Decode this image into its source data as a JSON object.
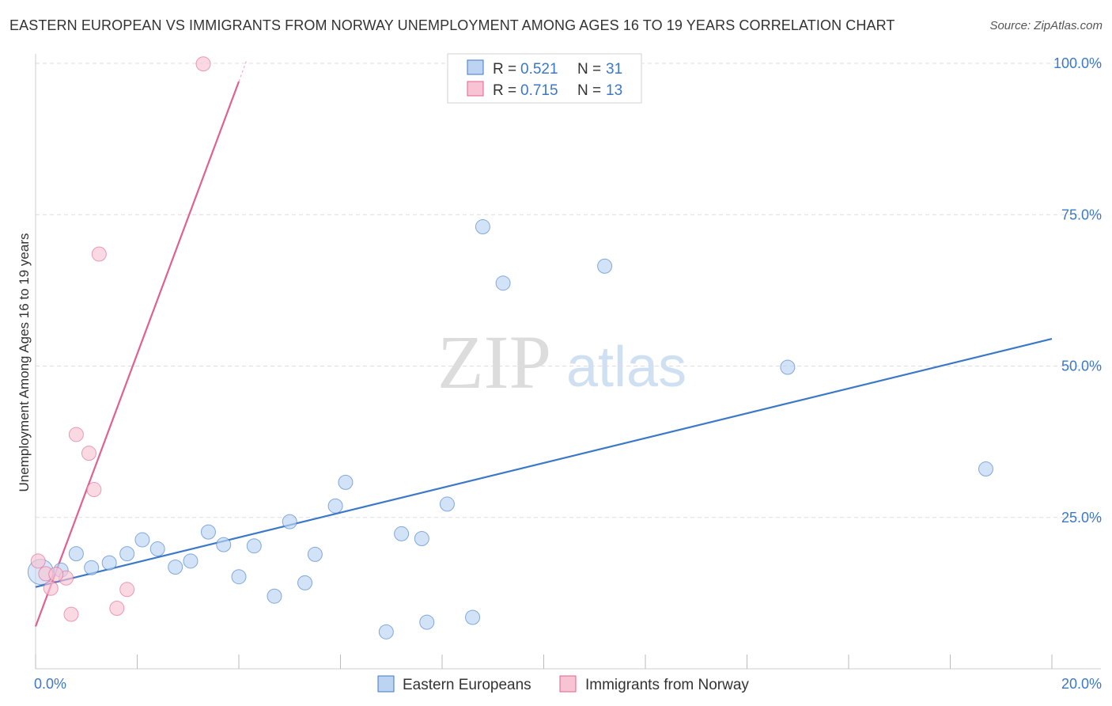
{
  "title": "EASTERN EUROPEAN VS IMMIGRANTS FROM NORWAY UNEMPLOYMENT AMONG AGES 16 TO 19 YEARS CORRELATION CHART",
  "source": "Source: ZipAtlas.com",
  "watermark": {
    "zip": "ZIP",
    "atlas": "atlas"
  },
  "colors": {
    "blue": "#3c78c8",
    "blue_fill": "#bcd4f2",
    "pink": "#e06090",
    "pink_fill": "#f8c4d4"
  },
  "legend": {
    "r_label": "R =",
    "n_label": "N =",
    "series": [
      {
        "r": "0.521",
        "n": "31"
      },
      {
        "r": "0.715",
        "n": "13"
      }
    ]
  },
  "chart_data": {
    "type": "scatter",
    "title": "EASTERN EUROPEAN VS IMMIGRANTS FROM NORWAY UNEMPLOYMENT AMONG AGES 16 TO 19 YEARS CORRELATION CHART",
    "xlabel": "",
    "ylabel": "Unemployment Among Ages 16 to 19 years",
    "xlim": [
      0,
      20
    ],
    "ylim": [
      0,
      100
    ],
    "x_tick_labels": [
      "0.0%",
      "20.0%"
    ],
    "y_tick_labels": [
      "100.0%",
      "75.0%",
      "50.0%",
      "25.0%"
    ],
    "y_ticks": [
      100,
      75,
      50,
      25
    ],
    "series": [
      {
        "name": "Eastern Europeans",
        "color": "#3c78c8",
        "trendline": {
          "x": [
            0,
            20
          ],
          "y": [
            13.5,
            54.5
          ]
        },
        "points": [
          {
            "x": 0.1,
            "y": 16.0
          },
          {
            "x": 0.5,
            "y": 16.3
          },
          {
            "x": 0.8,
            "y": 19.0
          },
          {
            "x": 1.1,
            "y": 16.7
          },
          {
            "x": 1.45,
            "y": 17.5
          },
          {
            "x": 1.8,
            "y": 19.0
          },
          {
            "x": 2.1,
            "y": 21.3
          },
          {
            "x": 2.4,
            "y": 19.8
          },
          {
            "x": 2.75,
            "y": 16.8
          },
          {
            "x": 3.05,
            "y": 17.8
          },
          {
            "x": 3.4,
            "y": 22.6
          },
          {
            "x": 3.7,
            "y": 20.5
          },
          {
            "x": 4.0,
            "y": 15.2
          },
          {
            "x": 4.3,
            "y": 20.3
          },
          {
            "x": 4.7,
            "y": 12.0
          },
          {
            "x": 5.0,
            "y": 24.3
          },
          {
            "x": 5.3,
            "y": 14.2
          },
          {
            "x": 5.5,
            "y": 18.9
          },
          {
            "x": 5.9,
            "y": 26.9
          },
          {
            "x": 6.1,
            "y": 30.8
          },
          {
            "x": 6.9,
            "y": 6.1
          },
          {
            "x": 7.2,
            "y": 22.3
          },
          {
            "x": 7.6,
            "y": 21.5
          },
          {
            "x": 7.7,
            "y": 7.7
          },
          {
            "x": 8.1,
            "y": 27.2
          },
          {
            "x": 8.6,
            "y": 8.5
          },
          {
            "x": 8.8,
            "y": 73.0
          },
          {
            "x": 9.2,
            "y": 63.7
          },
          {
            "x": 11.2,
            "y": 66.5
          },
          {
            "x": 14.8,
            "y": 49.8
          },
          {
            "x": 18.7,
            "y": 33.0
          }
        ]
      },
      {
        "name": "Immigrants from Norway",
        "color": "#e06090",
        "trendline": {
          "x": [
            0,
            4.0
          ],
          "y": [
            7.0,
            97.0
          ]
        },
        "points": [
          {
            "x": 0.05,
            "y": 17.8
          },
          {
            "x": 0.2,
            "y": 15.7
          },
          {
            "x": 0.3,
            "y": 13.3
          },
          {
            "x": 0.6,
            "y": 15.0
          },
          {
            "x": 0.7,
            "y": 9.0
          },
          {
            "x": 0.8,
            "y": 38.7
          },
          {
            "x": 1.05,
            "y": 35.6
          },
          {
            "x": 1.15,
            "y": 29.6
          },
          {
            "x": 1.25,
            "y": 68.5
          },
          {
            "x": 1.6,
            "y": 10.0
          },
          {
            "x": 1.8,
            "y": 13.1
          },
          {
            "x": 3.3,
            "y": 99.9
          },
          {
            "x": 0.4,
            "y": 15.6
          }
        ]
      }
    ]
  }
}
